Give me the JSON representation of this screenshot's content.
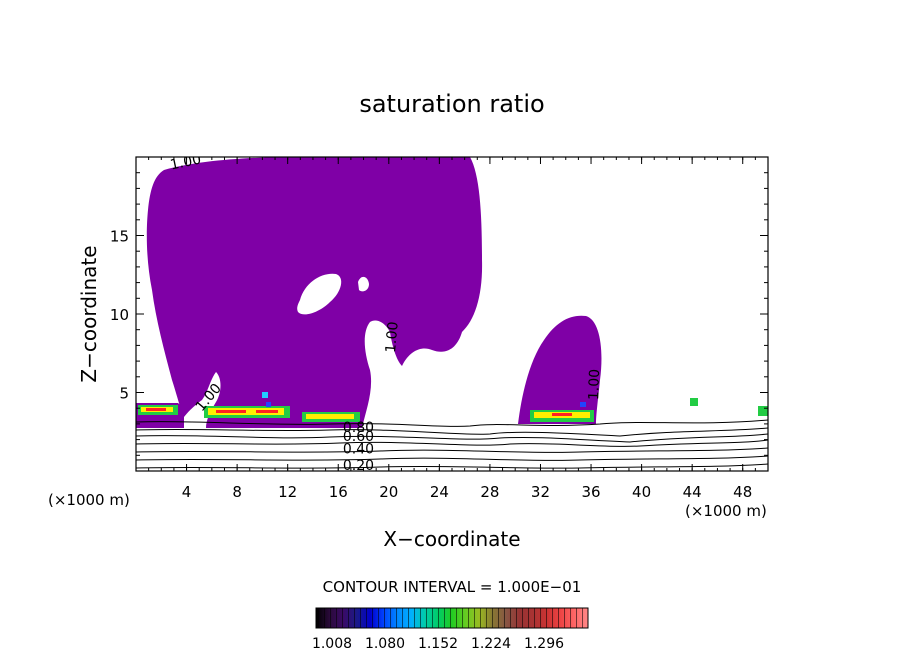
{
  "chart_data": {
    "type": "contour",
    "title": "saturation ratio",
    "xlabel": "X−coordinate",
    "ylabel": "Z−coordinate",
    "x_unit_left": "(×1000 m)",
    "x_unit_right": "(×1000 m)",
    "xlim": [
      0,
      50
    ],
    "ylim": [
      0,
      20
    ],
    "xticks": [
      4,
      8,
      12,
      16,
      20,
      24,
      28,
      32,
      36,
      40,
      44,
      48
    ],
    "yticks": [
      5,
      10,
      15
    ],
    "contour_interval_text": "CONTOUR INTERVAL = 1.000E−01",
    "contour_labels": [
      {
        "text": "1.00",
        "x": 4.0,
        "y": 19.4,
        "rotate": -12
      },
      {
        "text": "1.00",
        "x": 6.0,
        "y": 4.5,
        "rotate": -50
      },
      {
        "text": "1.00",
        "x": 20.6,
        "y": 8.5,
        "rotate": -85
      },
      {
        "text": "1.00",
        "x": 36.6,
        "y": 5.5,
        "rotate": -88
      },
      {
        "text": "0.80",
        "x": 17.6,
        "y": 2.5,
        "rotate": 0
      },
      {
        "text": "0.60",
        "x": 17.6,
        "y": 1.9,
        "rotate": 0
      },
      {
        "text": "0.40",
        "x": 17.6,
        "y": 1.1,
        "rotate": 0
      },
      {
        "text": "0.20",
        "x": 17.6,
        "y": 0.05,
        "rotate": 0
      }
    ],
    "colorbar": {
      "ticks": [
        "1.008",
        "1.080",
        "1.152",
        "1.224",
        "1.296"
      ],
      "colors": [
        "#000000",
        "#2a0a3a",
        "#3a0a66",
        "#1a1a88",
        "#0000cc",
        "#0044ff",
        "#0088ff",
        "#00b0ff",
        "#00ccaa",
        "#00cc66",
        "#22cc22",
        "#66cc22",
        "#99bb22",
        "#887733",
        "#885544",
        "#993333",
        "#aa3333",
        "#cc3333",
        "#ee4444",
        "#ff6666",
        "#ff8888"
      ]
    },
    "colors": {
      "fill": "#7f00a6",
      "plume_green": "#22cc44",
      "plume_yellow": "#ffee00",
      "plume_red": "#ff2222",
      "plume_blue": "#2244ff",
      "plume_cyan": "#22ccff"
    }
  }
}
